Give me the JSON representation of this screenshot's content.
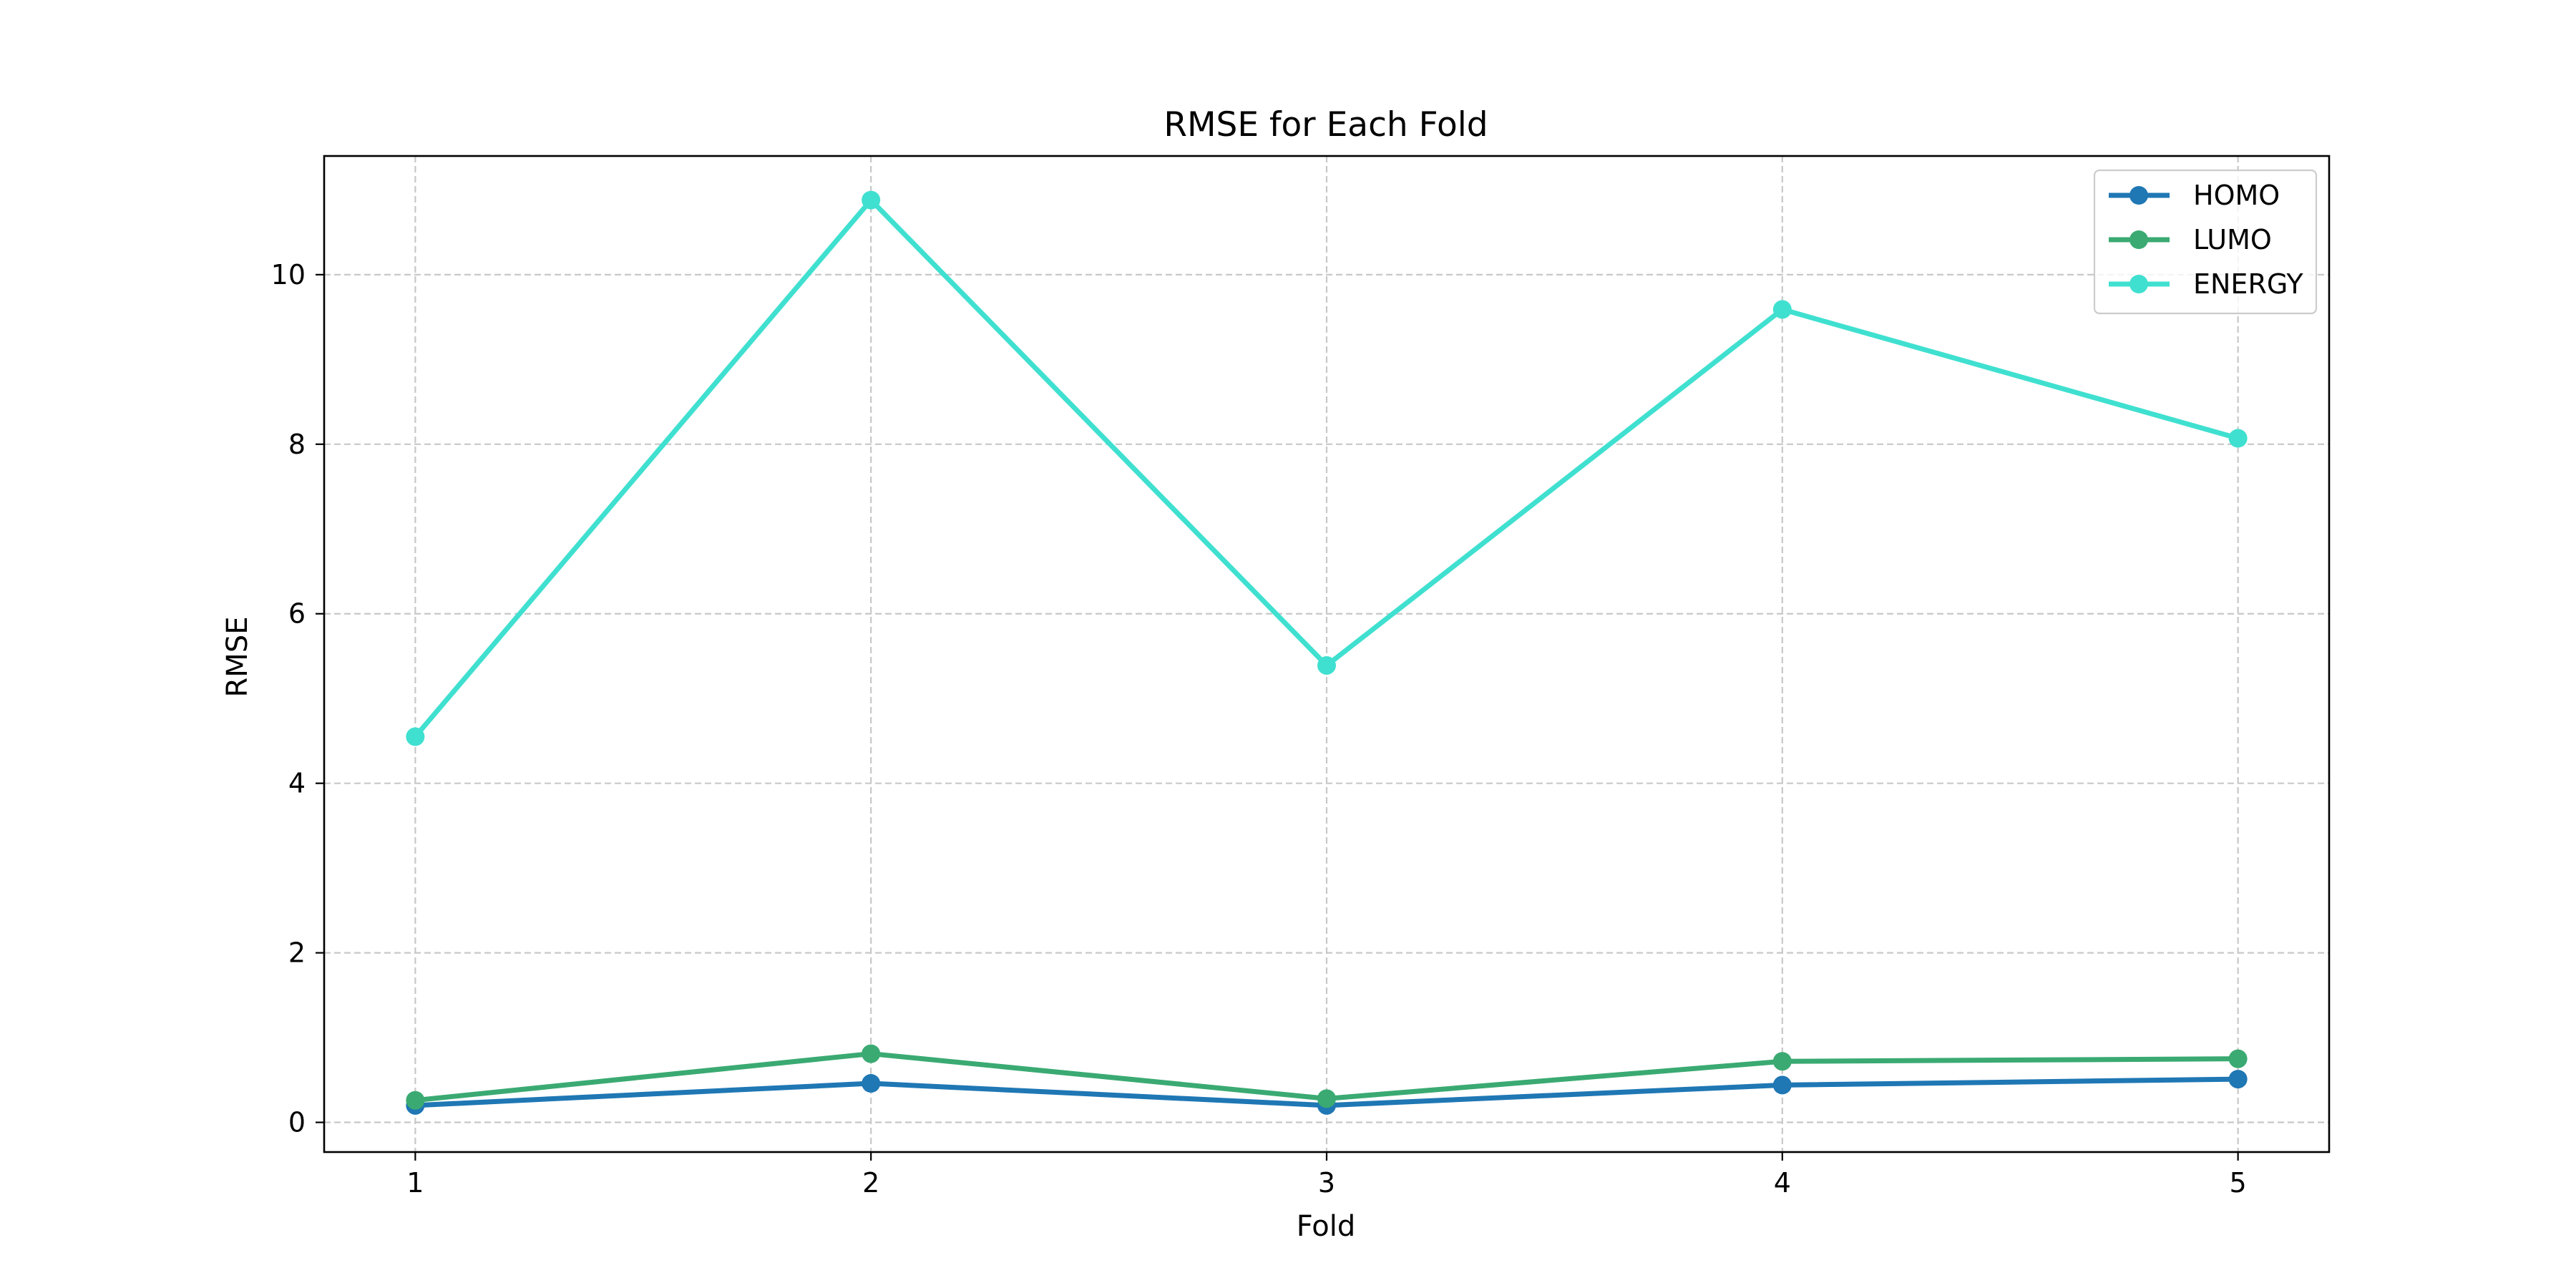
{
  "chart_data": {
    "type": "line",
    "title": "RMSE for Each Fold",
    "xlabel": "Fold",
    "ylabel": "RMSE",
    "categories": [
      1,
      2,
      3,
      4,
      5
    ],
    "xlim": [
      0.8,
      5.2
    ],
    "ylim": [
      -0.35,
      11.4
    ],
    "yticks": [
      0,
      2,
      4,
      6,
      8,
      10
    ],
    "grid": true,
    "legend_position": "top-right",
    "series": [
      {
        "name": "HOMO",
        "color": "#1f77b4",
        "values": [
          0.2,
          0.46,
          0.2,
          0.44,
          0.51
        ]
      },
      {
        "name": "LUMO",
        "color": "#3aaa72",
        "values": [
          0.26,
          0.81,
          0.28,
          0.72,
          0.75
        ]
      },
      {
        "name": "ENERGY",
        "color": "#40e0d0",
        "values": [
          4.55,
          10.88,
          5.39,
          9.59,
          8.07
        ]
      }
    ]
  }
}
